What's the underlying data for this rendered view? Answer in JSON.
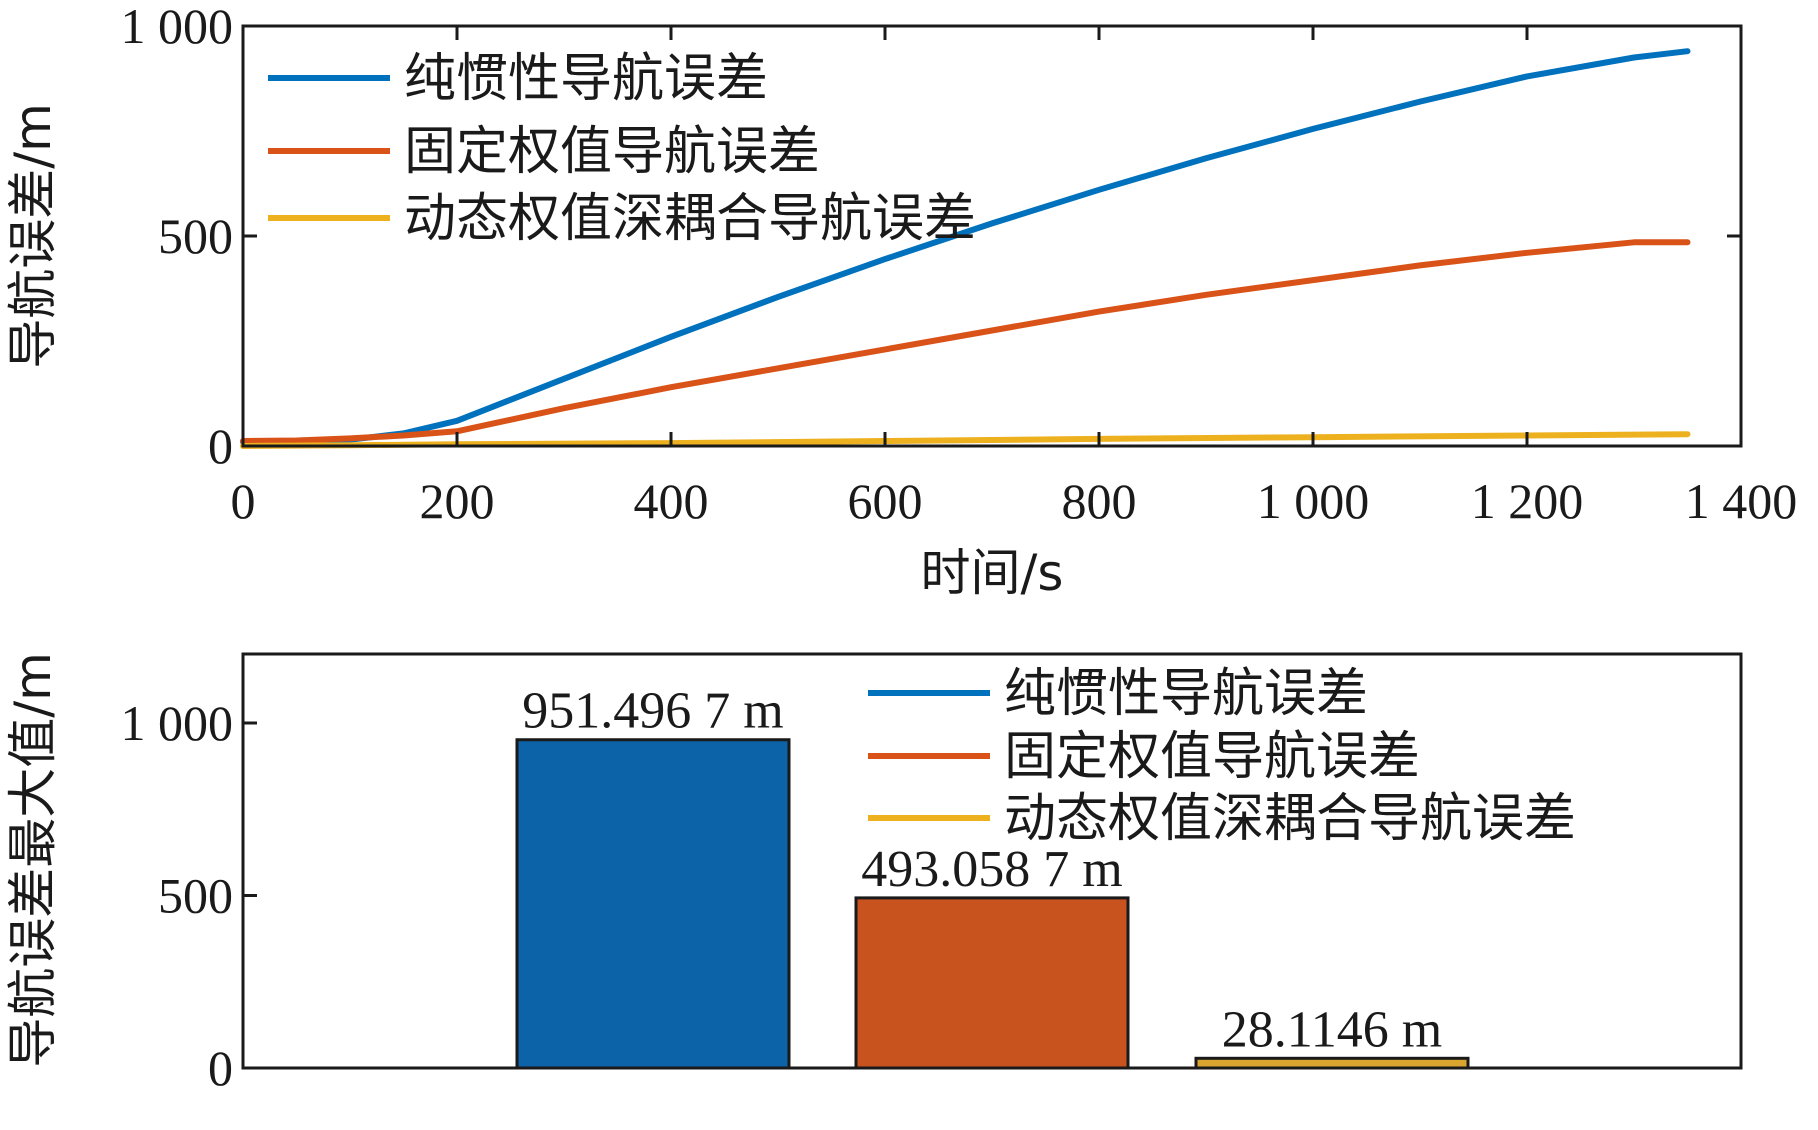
{
  "colors": {
    "series1": "#0072BD",
    "series2": "#D95319",
    "series3": "#EDB120",
    "bar1": "#0D63A8",
    "bar2": "#C9531E",
    "bar3": "#D9A52E",
    "axis": "#1a1a1a"
  },
  "chart_data": [
    {
      "type": "line",
      "xlabel": "时间/s",
      "ylabel": "导航误差/m",
      "xlim": [
        0,
        1400
      ],
      "ylim": [
        0,
        1000
      ],
      "xticks": [
        0,
        200,
        400,
        600,
        800,
        1000,
        1200,
        1400
      ],
      "xtick_labels": [
        "0",
        "200",
        "400",
        "600",
        "800",
        "1 000",
        "1 200",
        "1 400"
      ],
      "yticks": [
        0,
        500,
        1000
      ],
      "ytick_labels": [
        "0",
        "500",
        "1 000"
      ],
      "grid": false,
      "legend_position": "top-left",
      "series": [
        {
          "name": "纯惯性导航误差",
          "x": [
            0,
            50,
            100,
            150,
            200,
            250,
            300,
            400,
            500,
            600,
            700,
            800,
            900,
            1000,
            1100,
            1200,
            1300,
            1350
          ],
          "y": [
            10,
            8,
            15,
            30,
            60,
            110,
            160,
            260,
            355,
            445,
            530,
            610,
            685,
            755,
            820,
            880,
            925,
            940
          ]
        },
        {
          "name": "固定权值导航误差",
          "x": [
            0,
            50,
            100,
            150,
            200,
            300,
            400,
            500,
            600,
            700,
            800,
            900,
            1000,
            1100,
            1200,
            1300,
            1350
          ],
          "y": [
            12,
            13,
            18,
            25,
            35,
            90,
            140,
            185,
            230,
            275,
            320,
            360,
            395,
            430,
            460,
            485,
            485
          ]
        },
        {
          "name": "动态权值深耦合导航误差",
          "x": [
            0,
            100,
            200,
            400,
            600,
            800,
            1000,
            1200,
            1350
          ],
          "y": [
            0,
            2,
            4,
            7,
            12,
            17,
            21,
            25,
            28
          ]
        }
      ]
    },
    {
      "type": "bar",
      "ylabel": "导航误差最大值/m",
      "ylim": [
        0,
        1200
      ],
      "yticks": [
        0,
        500,
        1000
      ],
      "ytick_labels": [
        "0",
        "500",
        "1 000"
      ],
      "legend_position": "top-right",
      "series_names": [
        "纯惯性导航误差",
        "固定权值导航误差",
        "动态权值深耦合导航误差"
      ],
      "values": [
        951.4967,
        493.0587,
        28.1146
      ],
      "data_labels": [
        "951.496 7 m",
        "493.058 7 m",
        "28.1146 m"
      ]
    }
  ]
}
